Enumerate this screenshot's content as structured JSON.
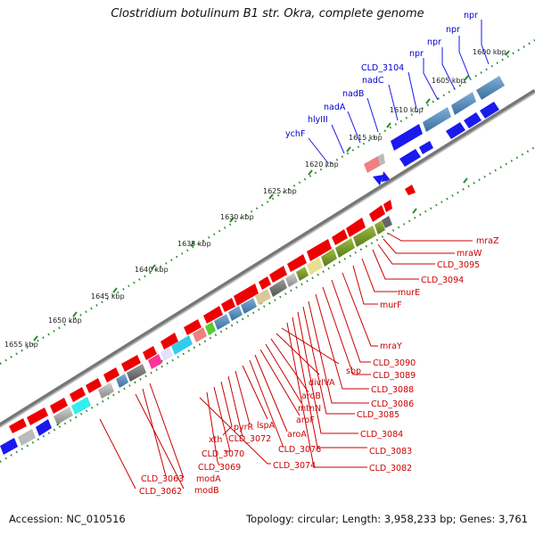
{
  "title": "Clostridium botulinum B1 str. Okra, complete genome",
  "footer": {
    "accession": "Accession: NC_010516",
    "topology": "Topology: circular; Length: 3,958,233 bp; Genes: 3,761"
  },
  "kbp_labels": [
    "1600 kbp",
    "1605 kbp",
    "1610 kbp",
    "1615 kbp",
    "1620 kbp",
    "1625 kbp",
    "1630 kbp",
    "1635 kbp",
    "1640 kbp",
    "1645 kbp",
    "1650 kbp",
    "1655 kbp"
  ],
  "top_gene_labels": [
    "npr",
    "npr",
    "npr",
    "npr",
    "CLD_3104",
    "nadC",
    "nadB",
    "nadA",
    "hlyIII",
    "ychF"
  ],
  "bottom_gene_labels": [
    "mraZ",
    "mraW",
    "CLD_3095",
    "CLD_3094",
    "murE",
    "murF",
    "mraY",
    "CLD_3090",
    "CLD_3089",
    "CLD_3088",
    "CLD_3086",
    "CLD_3085",
    "CLD_3084",
    "CLD_3083",
    "CLD_3082",
    "sbp",
    "divIVA",
    "aroB",
    "mtnN",
    "aroF",
    "aroA",
    "CLD_3076",
    "lspA",
    "pyrR",
    "CLD_3072",
    "xth",
    "CLD_3070",
    "CLD_3069",
    "CLD_3074",
    "modA",
    "CLD_3063",
    "modB",
    "CLD_3062"
  ],
  "colors": {
    "backbone": "#8c8c8c",
    "tick": "#2a8a2a",
    "gene_red": "#ee0000",
    "gene_blue": "#1a1aee",
    "top_label": "#0000cc",
    "bottom_label": "#cc0000"
  }
}
